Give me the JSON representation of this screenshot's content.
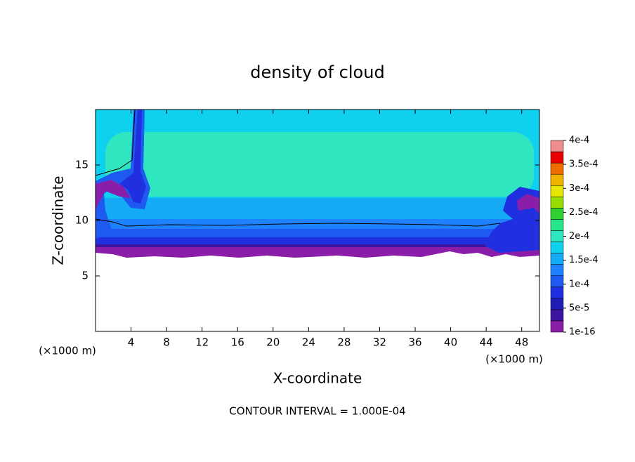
{
  "chart_data": {
    "type": "contour",
    "title": "density of cloud",
    "x_label": "X-coordinate",
    "y_label": "Z-coordinate",
    "x_unit": "(×1000 m)",
    "footer": "CONTOUR INTERVAL = 1.000E-04",
    "xlim": [
      0,
      50
    ],
    "xticks": [
      4,
      8,
      12,
      16,
      20,
      24,
      28,
      32,
      36,
      40,
      44,
      48
    ],
    "ylim": [
      0,
      20
    ],
    "yticks": [
      5,
      10,
      15
    ],
    "colorbar_ticks": [
      {
        "value": 1e-16,
        "label": "1e-16"
      },
      {
        "value": 5e-05,
        "label": "5e-5"
      },
      {
        "value": 0.0001,
        "label": "1e-4"
      },
      {
        "value": 0.00015,
        "label": "1.5e-4"
      },
      {
        "value": 0.0002,
        "label": "2e-4"
      },
      {
        "value": 0.00025,
        "label": "2.5e-4"
      },
      {
        "value": 0.0003,
        "label": "3e-4"
      },
      {
        "value": 0.00035,
        "label": "3.5e-4"
      },
      {
        "value": 0.0004,
        "label": "4e-4"
      }
    ],
    "colorbar_colors": [
      "#8a1ea8",
      "#3c14a0",
      "#1e1eb4",
      "#2030e0",
      "#1e5af0",
      "#1e82ff",
      "#14aaf5",
      "#10d0f0",
      "#30e6c0",
      "#28e68c",
      "#30d232",
      "#96dc00",
      "#e6e600",
      "#f0b400",
      "#f06e00",
      "#e60000",
      "#f08c8c"
    ]
  }
}
